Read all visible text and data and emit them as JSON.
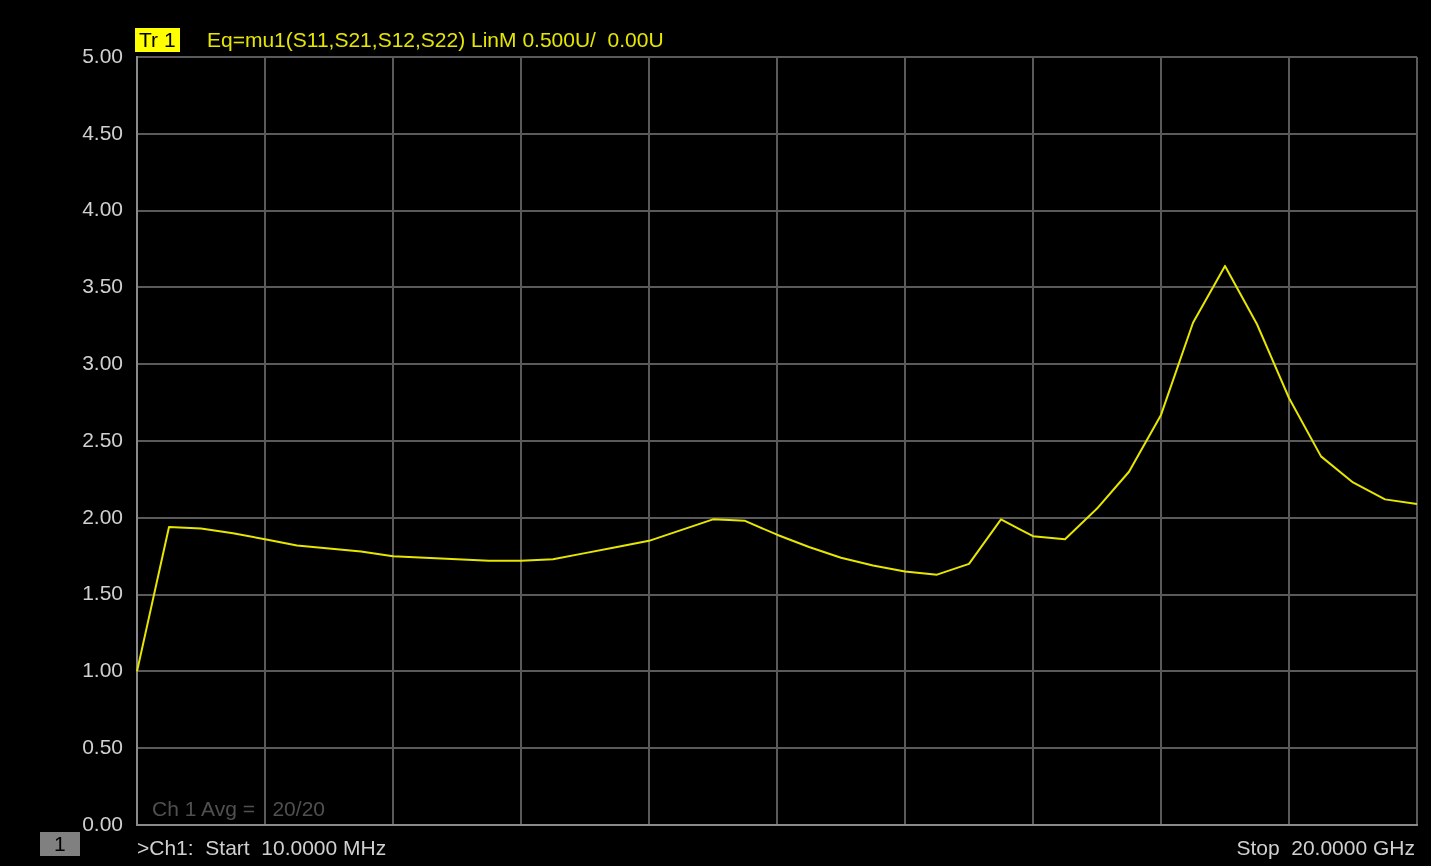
{
  "chart_data": {
    "type": "line",
    "title": "Eq=mu1(S11,S21,S12,S22) LinM 0.500U/  0.00U",
    "annotations": [
      "Tr 1",
      "Ch 1 Avg =   20/20",
      ">Ch1:  Start  10.0000 MHz",
      "Stop  20.0000 GHz",
      "1"
    ],
    "categories": [
      null,
      null,
      null,
      null,
      null,
      null,
      null,
      null,
      null,
      null,
      null,
      null,
      null,
      null,
      null,
      null,
      null,
      null,
      null,
      null,
      null,
      null,
      null,
      null,
      null,
      null,
      null,
      null,
      null,
      null,
      null,
      null,
      null,
      null,
      null,
      null,
      null,
      null,
      null,
      null,
      null
    ],
    "ylim": [
      0,
      5
    ],
    "yticks": [
      {
        "value": 0,
        "label": "0.00"
      },
      {
        "value": 0.5,
        "label": "0.50"
      },
      {
        "value": 1,
        "label": "1.00"
      },
      {
        "value": 1.5,
        "label": "1.50"
      },
      {
        "value": 2,
        "label": "2.00"
      },
      {
        "value": 2.5,
        "label": "2.50"
      },
      {
        "value": 3,
        "label": "3.00"
      },
      {
        "value": 3.5,
        "label": "3.50"
      },
      {
        "value": 4,
        "label": "4.00"
      },
      {
        "value": 4.5,
        "label": "4.50"
      },
      {
        "value": 5,
        "label": "5.00"
      }
    ],
    "grid": true,
    "legend": false,
    "marker": "none",
    "line_style": "solid",
    "series": [
      {
        "color": "#e6e600",
        "values": [
          1.0,
          1.94,
          1.93,
          1.9,
          1.86,
          1.82,
          1.8,
          1.78,
          1.75,
          1.74,
          1.73,
          1.72,
          1.72,
          1.73,
          1.77,
          1.81,
          1.85,
          1.92,
          1.99,
          1.98,
          1.89,
          1.81,
          1.74,
          1.69,
          1.65,
          1.63,
          1.7,
          1.99,
          1.88,
          1.86,
          2.06,
          2.3,
          2.67,
          3.27,
          3.64,
          3.26,
          2.78,
          2.4,
          2.23,
          2.12,
          2.09
        ]
      }
    ]
  }
}
